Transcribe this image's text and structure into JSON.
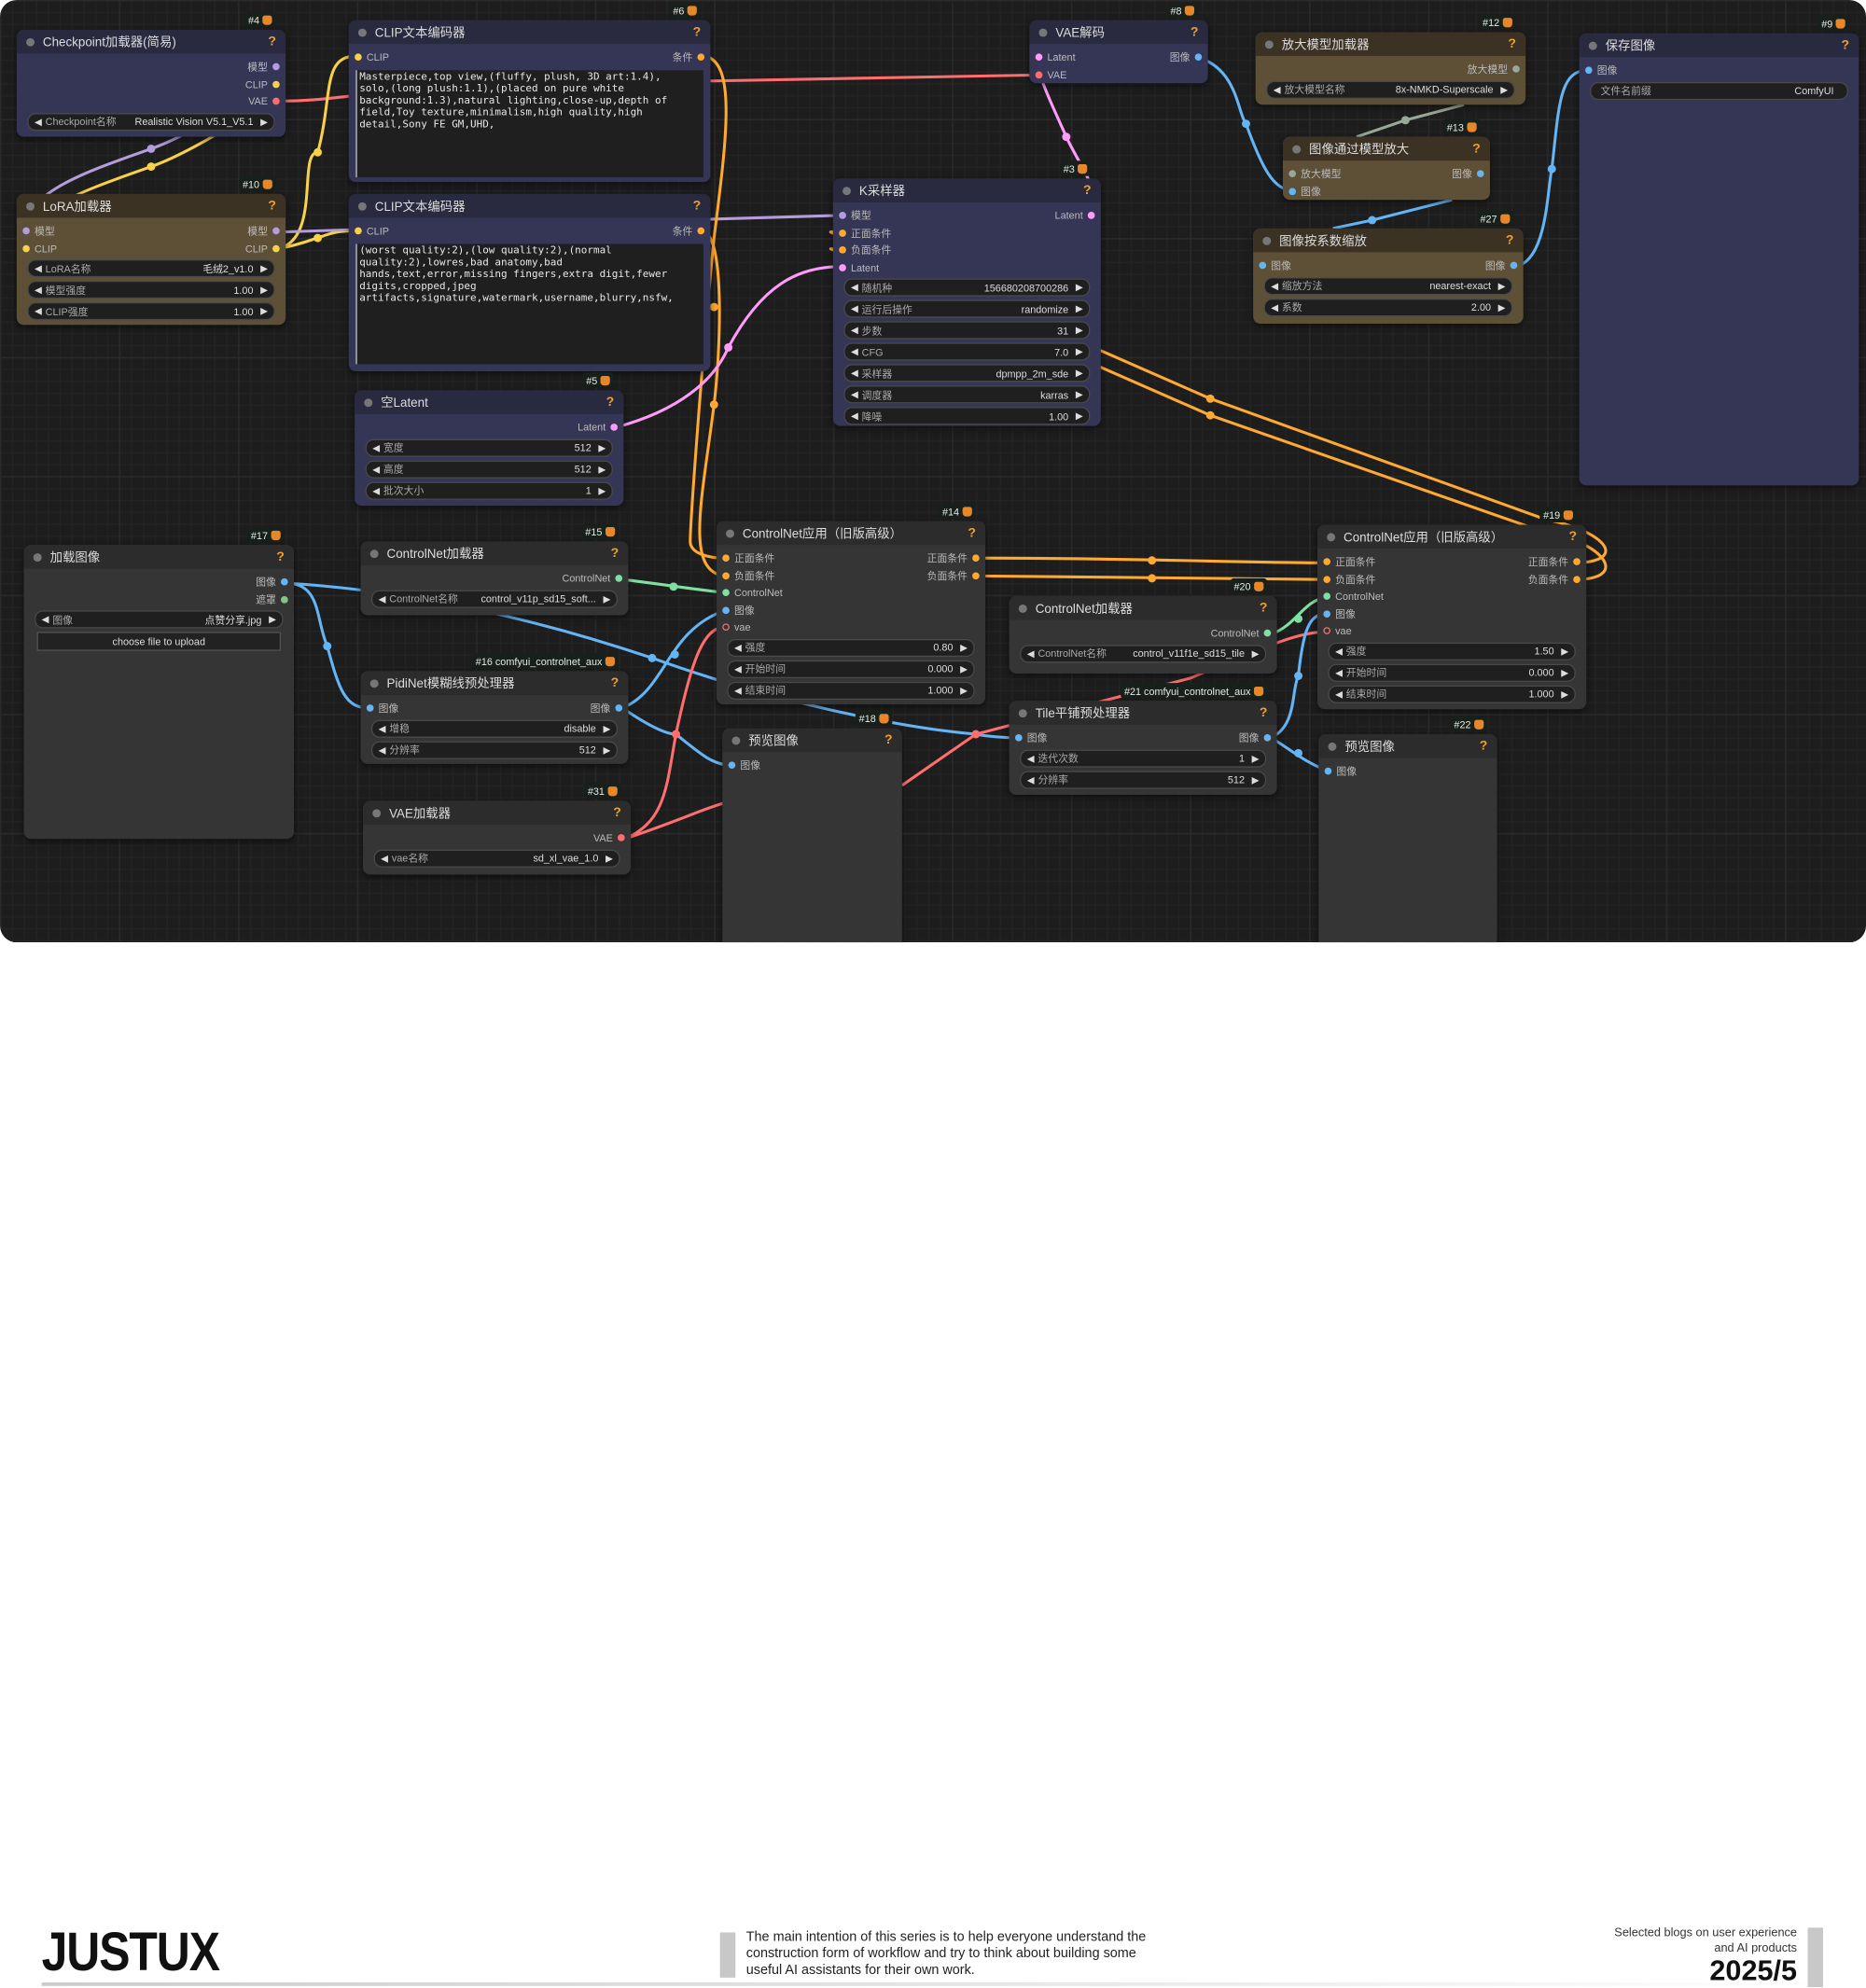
{
  "type_colors": {
    "MODEL": "#b39ddb",
    "CLIP": "#f7d14a",
    "VAE": "#ff6e6e",
    "LATENT": "#ff9cf9",
    "IMAGE": "#64b5f6",
    "CONDITIONING": "#ffa931",
    "CONTROL_NET": "#7fe0a0",
    "UPSCALE_MODEL": "#9aa89a",
    "MASK": "#81c784"
  },
  "nodes": [
    {
      "id": "4",
      "badge": "#4",
      "title": "Checkpoint加载器(简易)",
      "theme": "blue",
      "inputs": [],
      "outputs": [
        {
          "label": "模型",
          "type": "MODEL"
        },
        {
          "label": "CLIP",
          "type": "CLIP"
        },
        {
          "label": "VAE",
          "type": "VAE"
        }
      ],
      "widgets": [
        {
          "label": "Checkpoint名称",
          "value": "Realistic Vision V5.1_V5.1"
        }
      ]
    },
    {
      "id": "10",
      "badge": "#10",
      "title": "LoRA加载器",
      "theme": "brown",
      "inputs": [
        {
          "label": "模型",
          "type": "MODEL"
        },
        {
          "label": "CLIP",
          "type": "CLIP"
        }
      ],
      "outputs": [
        {
          "label": "模型",
          "type": "MODEL"
        },
        {
          "label": "CLIP",
          "type": "CLIP"
        }
      ],
      "widgets": [
        {
          "label": "LoRA名称",
          "value": "毛绒2_v1.0"
        },
        {
          "label": "模型强度",
          "value": "1.00"
        },
        {
          "label": "CLIP强度",
          "value": "1.00"
        }
      ]
    },
    {
      "id": "6",
      "badge": "#6",
      "title": "CLIP文本编码器",
      "theme": "blue",
      "inputs": [
        {
          "label": "CLIP",
          "type": "CLIP"
        }
      ],
      "outputs": [
        {
          "label": "条件",
          "type": "CONDITIONING"
        }
      ],
      "text": "Masterpiece,top view,(fluffy, plush, 3D art:1.4),\nsolo,(long plush:1.1),(placed on pure white\nbackground:1.3),natural lighting,close-up,depth of\nfield,Toy texture,minimalism,high quality,high\ndetail,Sony FE GM,UHD,"
    },
    {
      "id": "7",
      "badge": "",
      "title": "CLIP文本编码器",
      "theme": "blue",
      "inputs": [
        {
          "label": "CLIP",
          "type": "CLIP"
        }
      ],
      "outputs": [
        {
          "label": "条件",
          "type": "CONDITIONING"
        }
      ],
      "text": "(worst quality:2),(low quality:2),(normal\nquality:2),lowres,bad anatomy,bad\nhands,text,error,missing fingers,extra digit,fewer\ndigits,cropped,jpeg\nartifacts,signature,watermark,username,blurry,nsfw,"
    },
    {
      "id": "5",
      "badge": "#5",
      "title": "空Latent",
      "theme": "blue",
      "inputs": [],
      "outputs": [
        {
          "label": "Latent",
          "type": "LATENT"
        }
      ],
      "widgets": [
        {
          "label": "宽度",
          "value": "512"
        },
        {
          "label": "高度",
          "value": "512"
        },
        {
          "label": "批次大小",
          "value": "1"
        }
      ]
    },
    {
      "id": "8",
      "badge": "#8",
      "title": "VAE解码",
      "theme": "blue",
      "inputs": [
        {
          "label": "Latent",
          "type": "LATENT"
        },
        {
          "label": "VAE",
          "type": "VAE"
        }
      ],
      "outputs": [
        {
          "label": "图像",
          "type": "IMAGE"
        }
      ]
    },
    {
      "id": "3",
      "badge": "#3",
      "title": "K采样器",
      "theme": "blue",
      "inputs": [
        {
          "label": "模型",
          "type": "MODEL"
        },
        {
          "label": "正面条件",
          "type": "CONDITIONING"
        },
        {
          "label": "负面条件",
          "type": "CONDITIONING"
        },
        {
          "label": "Latent",
          "type": "LATENT"
        }
      ],
      "outputs": [
        {
          "label": "Latent",
          "type": "LATENT"
        }
      ],
      "widgets": [
        {
          "label": "随机种",
          "value": "156680208700286"
        },
        {
          "label": "运行后操作",
          "value": "randomize"
        },
        {
          "label": "步数",
          "value": "31"
        },
        {
          "label": "CFG",
          "value": "7.0"
        },
        {
          "label": "采样器",
          "value": "dpmpp_2m_sde"
        },
        {
          "label": "调度器",
          "value": "karras"
        },
        {
          "label": "降噪",
          "value": "1.00"
        }
      ]
    },
    {
      "id": "12",
      "badge": "#12",
      "title": "放大模型加载器",
      "theme": "brown",
      "inputs": [],
      "outputs": [
        {
          "label": "放大模型",
          "type": "UPSCALE_MODEL"
        }
      ],
      "widgets": [
        {
          "label": "放大模型名称",
          "value": "8x-NMKD-Superscale"
        }
      ]
    },
    {
      "id": "13",
      "badge": "#13",
      "title": "图像通过模型放大",
      "theme": "brown",
      "inputs": [
        {
          "label": "放大模型",
          "type": "UPSCALE_MODEL"
        },
        {
          "label": "图像",
          "type": "IMAGE"
        }
      ],
      "outputs": [
        {
          "label": "图像",
          "type": "IMAGE"
        }
      ]
    },
    {
      "id": "27",
      "badge": "#27",
      "title": "图像按系数缩放",
      "theme": "brown",
      "inputs": [
        {
          "label": "图像",
          "type": "IMAGE"
        }
      ],
      "outputs": [
        {
          "label": "图像",
          "type": "IMAGE"
        }
      ],
      "widgets": [
        {
          "label": "缩放方法",
          "value": "nearest-exact"
        },
        {
          "label": "系数",
          "value": "2.00"
        }
      ]
    },
    {
      "id": "9",
      "badge": "#9",
      "title": "保存图像",
      "theme": "blue",
      "inputs": [
        {
          "label": "图像",
          "type": "IMAGE"
        }
      ],
      "outputs": [],
      "widgets": [
        {
          "label": "文件名前缀",
          "value": "ComfyUI",
          "text_only": true
        }
      ]
    },
    {
      "id": "17",
      "badge": "#17",
      "title": "加载图像",
      "theme": "gray",
      "inputs": [],
      "outputs": [
        {
          "label": "图像",
          "type": "IMAGE"
        },
        {
          "label": "遮罩",
          "type": "MASK"
        }
      ],
      "widgets": [
        {
          "label": "图像",
          "value": "点赞分享.jpg"
        }
      ],
      "button": "choose file to upload"
    },
    {
      "id": "15",
      "badge": "#15",
      "title": "ControlNet加载器",
      "theme": "gray",
      "inputs": [],
      "outputs": [
        {
          "label": "ControlNet",
          "type": "CONTROL_NET"
        }
      ],
      "widgets": [
        {
          "label": "ControlNet名称",
          "value": "control_v11p_sd15_soft..."
        }
      ]
    },
    {
      "id": "16",
      "badge": "#16 comfyui_controlnet_aux",
      "title": "PidiNet模糊线预处理器",
      "theme": "gray",
      "inputs": [
        {
          "label": "图像",
          "type": "IMAGE"
        }
      ],
      "outputs": [
        {
          "label": "图像",
          "type": "IMAGE"
        }
      ],
      "widgets": [
        {
          "label": "增稳",
          "value": "disable"
        },
        {
          "label": "分辨率",
          "value": "512"
        }
      ]
    },
    {
      "id": "31",
      "badge": "#31",
      "title": "VAE加载器",
      "theme": "gray",
      "inputs": [],
      "outputs": [
        {
          "label": "VAE",
          "type": "VAE"
        }
      ],
      "widgets": [
        {
          "label": "vae名称",
          "value": "sd_xl_vae_1.0"
        }
      ]
    },
    {
      "id": "14",
      "badge": "#14",
      "title": "ControlNet应用（旧版高级）",
      "theme": "gray",
      "inputs": [
        {
          "label": "正面条件",
          "type": "CONDITIONING"
        },
        {
          "label": "负面条件",
          "type": "CONDITIONING"
        },
        {
          "label": "ControlNet",
          "type": "CONTROL_NET"
        },
        {
          "label": "图像",
          "type": "IMAGE"
        },
        {
          "label": "vae",
          "type": "VAE",
          "hollow": true
        }
      ],
      "outputs": [
        {
          "label": "正面条件",
          "type": "CONDITIONING"
        },
        {
          "label": "负面条件",
          "type": "CONDITIONING"
        }
      ],
      "widgets": [
        {
          "label": "强度",
          "value": "0.80"
        },
        {
          "label": "开始时间",
          "value": "0.000"
        },
        {
          "label": "结束时间",
          "value": "1.000"
        }
      ]
    },
    {
      "id": "18",
      "badge": "#18",
      "title": "预览图像",
      "theme": "gray",
      "inputs": [
        {
          "label": "图像",
          "type": "IMAGE"
        }
      ],
      "outputs": []
    },
    {
      "id": "20",
      "badge": "#20",
      "title": "ControlNet加载器",
      "theme": "gray",
      "inputs": [],
      "outputs": [
        {
          "label": "ControlNet",
          "type": "CONTROL_NET"
        }
      ],
      "widgets": [
        {
          "label": "ControlNet名称",
          "value": "control_v11f1e_sd15_tile"
        }
      ]
    },
    {
      "id": "21",
      "badge": "#21 comfyui_controlnet_aux",
      "title": "Tile平铺预处理器",
      "theme": "gray",
      "inputs": [
        {
          "label": "图像",
          "type": "IMAGE"
        }
      ],
      "outputs": [
        {
          "label": "图像",
          "type": "IMAGE"
        }
      ],
      "widgets": [
        {
          "label": "迭代次数",
          "value": "1"
        },
        {
          "label": "分辨率",
          "value": "512"
        }
      ]
    },
    {
      "id": "19",
      "badge": "#19",
      "title": "ControlNet应用（旧版高级）",
      "theme": "gray",
      "inputs": [
        {
          "label": "正面条件",
          "type": "CONDITIONING"
        },
        {
          "label": "负面条件",
          "type": "CONDITIONING"
        },
        {
          "label": "ControlNet",
          "type": "CONTROL_NET"
        },
        {
          "label": "图像",
          "type": "IMAGE"
        },
        {
          "label": "vae",
          "type": "VAE",
          "hollow": true
        }
      ],
      "outputs": [
        {
          "label": "正面条件",
          "type": "CONDITIONING"
        },
        {
          "label": "负面条件",
          "type": "CONDITIONING"
        }
      ],
      "widgets": [
        {
          "label": "强度",
          "value": "1.50"
        },
        {
          "label": "开始时间",
          "value": "0.000"
        },
        {
          "label": "结束时间",
          "value": "1.000"
        }
      ]
    },
    {
      "id": "22",
      "badge": "#22",
      "title": "预览图像",
      "theme": "gray",
      "inputs": [
        {
          "label": "图像",
          "type": "IMAGE"
        }
      ],
      "outputs": []
    }
  ],
  "footer": {
    "logo": "JUSTUX",
    "description": "The main intention of this series is to help everyone understand the construction form of workflow and try to think about building some useful AI assistants for their own work.",
    "tagline": "Selected blogs on user experience and AI products",
    "date": "2025/5"
  }
}
